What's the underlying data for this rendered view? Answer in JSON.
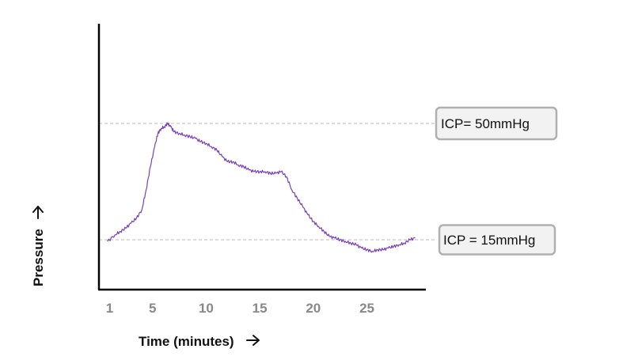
{
  "chart_data": {
    "type": "line",
    "xlabel": "Time (minutes)",
    "ylabel": "Pressure",
    "xticks": [
      "1",
      "5",
      "10",
      "15",
      "20",
      "25"
    ],
    "xlim": [
      0,
      30.5
    ],
    "ylim": [
      0,
      80
    ],
    "grid": false,
    "colors": {
      "line": "#7a3fb8",
      "reference": "#bbbbbb",
      "box_border": "#b0b0b0",
      "box_fill": "#f2f2f2"
    },
    "annotations": [
      {
        "label": "ICP= 50mmHg",
        "y": 50
      },
      {
        "label": "ICP = 15mmHg",
        "y": 15
      }
    ],
    "series": [
      {
        "x": [
          0.8,
          1.5,
          2,
          2.5,
          3,
          3.5,
          4,
          4.4,
          4.8,
          5.2,
          5.5,
          5.8,
          6.1,
          6.4,
          6.7,
          7,
          7.5,
          8,
          8.5,
          9,
          9.5,
          10,
          10.5,
          11,
          11.5,
          12,
          12.5,
          13,
          13.5,
          14,
          14.5,
          15,
          15.5,
          16,
          16.5,
          17,
          17.5,
          18,
          18.5,
          19,
          19.5,
          20,
          20.5,
          21,
          21.5,
          22,
          22.5,
          23,
          23.5,
          24,
          24.5,
          25,
          25.5,
          26,
          26.5,
          27,
          27.5,
          28,
          28.5,
          29,
          29.5
        ],
        "y": [
          14.5,
          16.5,
          17.5,
          18.5,
          20,
          21.5,
          24,
          30,
          37,
          43,
          47,
          48.5,
          49,
          50,
          49,
          47.5,
          47,
          46.5,
          46,
          45.5,
          44.5,
          44,
          43,
          42,
          40,
          38.5,
          38.5,
          37.5,
          37,
          36,
          35.5,
          35.5,
          35.5,
          35,
          35,
          35.5,
          34,
          30,
          27.5,
          25,
          22.5,
          20.5,
          19,
          17.5,
          16,
          15.5,
          15,
          14.5,
          14,
          13.5,
          12.5,
          12,
          11.5,
          12,
          12,
          12.5,
          13,
          13.5,
          14,
          15,
          15.5
        ]
      }
    ]
  }
}
